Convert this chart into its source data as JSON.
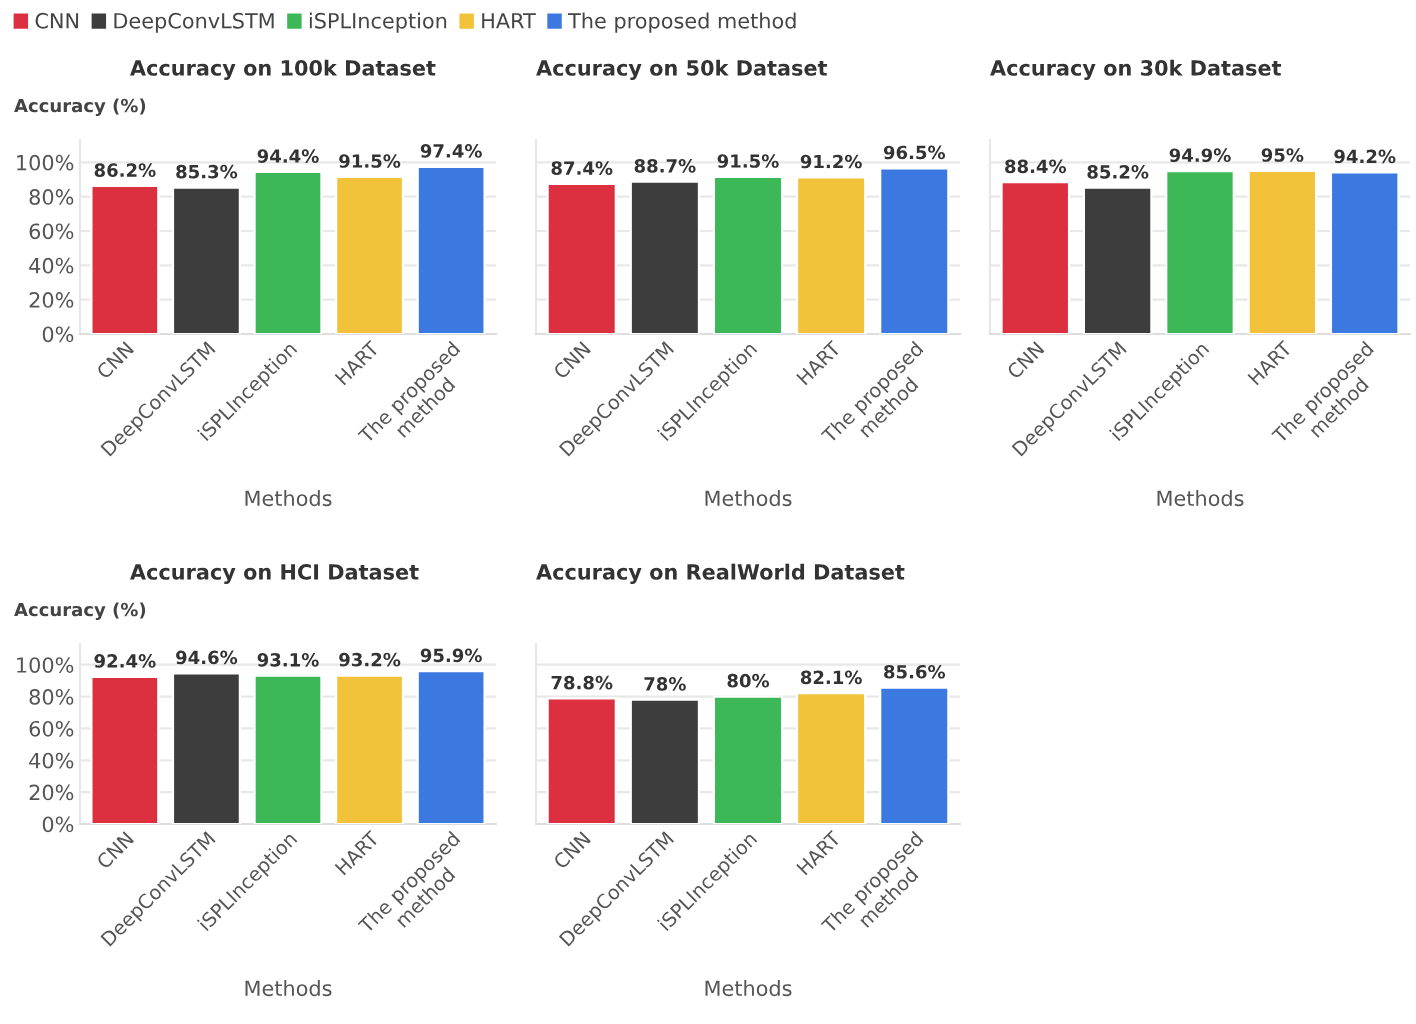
{
  "chart_data": [
    {
      "type": "bar",
      "title": "Accuracy on 100k Dataset",
      "xlabel": "Methods",
      "ylabel": "Accuracy (%)",
      "categories": [
        "CNN",
        "DeepConvLSTM",
        "iSPLInception",
        "HART",
        "The proposed\nmethod"
      ],
      "series": [
        {
          "name": "CNN",
          "color": "#dc3040",
          "values": [
            86.2,
            null,
            null,
            null,
            null
          ],
          "value_labels": [
            "86.2%",
            null,
            null,
            null,
            null
          ]
        },
        {
          "name": "DeepConvLSTM",
          "color": "#3d3d3d",
          "values": [
            null,
            85.3,
            null,
            null,
            null
          ],
          "value_labels": [
            null,
            "85.3%",
            null,
            null,
            null
          ]
        },
        {
          "name": "iSPLInception",
          "color": "#3cb956",
          "values": [
            null,
            null,
            94.4,
            null,
            null
          ],
          "value_labels": [
            null,
            null,
            "94.4%",
            null,
            null
          ]
        },
        {
          "name": "HART",
          "color": "#f2c23a",
          "values": [
            null,
            null,
            null,
            91.5,
            null
          ],
          "value_labels": [
            null,
            null,
            null,
            "91.5%",
            null
          ]
        },
        {
          "name": "The proposed method",
          "color": "#3b78e0",
          "values": [
            null,
            null,
            null,
            null,
            97.4
          ],
          "value_labels": [
            null,
            null,
            null,
            null,
            "97.4%"
          ]
        }
      ],
      "ylim": [
        0,
        113
      ],
      "yticks": [
        {
          "value": 0,
          "label": "0%"
        },
        {
          "value": 20,
          "label": "20%"
        },
        {
          "value": 40,
          "label": "40%"
        },
        {
          "value": 60,
          "label": "60%"
        },
        {
          "value": 80,
          "label": "80%"
        },
        {
          "value": 100,
          "label": "100%"
        }
      ],
      "grid": "y",
      "legend": "top"
    },
    {
      "type": "bar",
      "title": "Accuracy on 50k Dataset",
      "xlabel": "Methods",
      "categories": [
        "CNN",
        "DeepConvLSTM",
        "iSPLInception",
        "HART",
        "The proposed\nmethod"
      ],
      "values": [
        87.4,
        88.7,
        91.5,
        91.2,
        96.5
      ],
      "value_labels": [
        "87.4%",
        "88.7%",
        "91.5%",
        "91.2%",
        "96.5%"
      ],
      "colors": [
        "#dc3040",
        "#3d3d3d",
        "#3cb956",
        "#f2c23a",
        "#3b78e0"
      ],
      "ylim": [
        0,
        113
      ],
      "yticks": [
        0,
        20,
        40,
        60,
        80,
        100
      ],
      "grid": "y",
      "tick_labels": "x"
    },
    {
      "type": "bar",
      "title": "Accuracy on 30k Dataset",
      "xlabel": "Methods",
      "categories": [
        "CNN",
        "DeepConvLSTM",
        "iSPLInception",
        "HART",
        "The proposed\nmethod"
      ],
      "values": [
        88.4,
        85.2,
        94.9,
        95,
        94.2
      ],
      "value_labels": [
        "88.4%",
        "85.2%",
        "94.9%",
        "95%",
        "94.2%"
      ],
      "colors": [
        "#dc3040",
        "#3d3d3d",
        "#3cb956",
        "#f2c23a",
        "#3b78e0"
      ],
      "ylim": [
        0,
        113
      ],
      "yticks": [
        0,
        20,
        40,
        60,
        80,
        100
      ],
      "grid": "y",
      "tick_labels": "x"
    },
    {
      "type": "bar",
      "title": "Accuracy on HCI Dataset",
      "xlabel": "Methods",
      "ylabel": "Accuracy (%)",
      "categories": [
        "CNN",
        "DeepConvLSTM",
        "iSPLInception",
        "HART",
        "The proposed\nmethod"
      ],
      "values": [
        92.4,
        94.6,
        93.1,
        93.2,
        95.9
      ],
      "value_labels": [
        "92.4%",
        "94.6%",
        "93.1%",
        "93.2%",
        "95.9%"
      ],
      "colors": [
        "#dc3040",
        "#3d3d3d",
        "#3cb956",
        "#f2c23a",
        "#3b78e0"
      ],
      "ylim": [
        0,
        113
      ],
      "yticks": [
        {
          "value": 0,
          "label": "0%"
        },
        {
          "value": 20,
          "label": "20%"
        },
        {
          "value": 40,
          "label": "40%"
        },
        {
          "value": 60,
          "label": "60%"
        },
        {
          "value": 80,
          "label": "80%"
        },
        {
          "value": 100,
          "label": "100%"
        }
      ],
      "grid": "y"
    },
    {
      "type": "bar",
      "title": "Accuracy on RealWorld Dataset",
      "xlabel": "Methods",
      "categories": [
        "CNN",
        "DeepConvLSTM",
        "iSPLInception",
        "HART",
        "The proposed\nmethod"
      ],
      "values": [
        78.8,
        78,
        80,
        82.1,
        85.6
      ],
      "value_labels": [
        "78.8%",
        "78%",
        "80%",
        "82.1%",
        "85.6%"
      ],
      "colors": [
        "#dc3040",
        "#3d3d3d",
        "#3cb956",
        "#f2c23a",
        "#3b78e0"
      ],
      "ylim": [
        0,
        113
      ],
      "yticks": [
        0,
        20,
        40,
        60,
        80,
        100
      ],
      "grid": "y",
      "tick_labels": "x"
    }
  ]
}
